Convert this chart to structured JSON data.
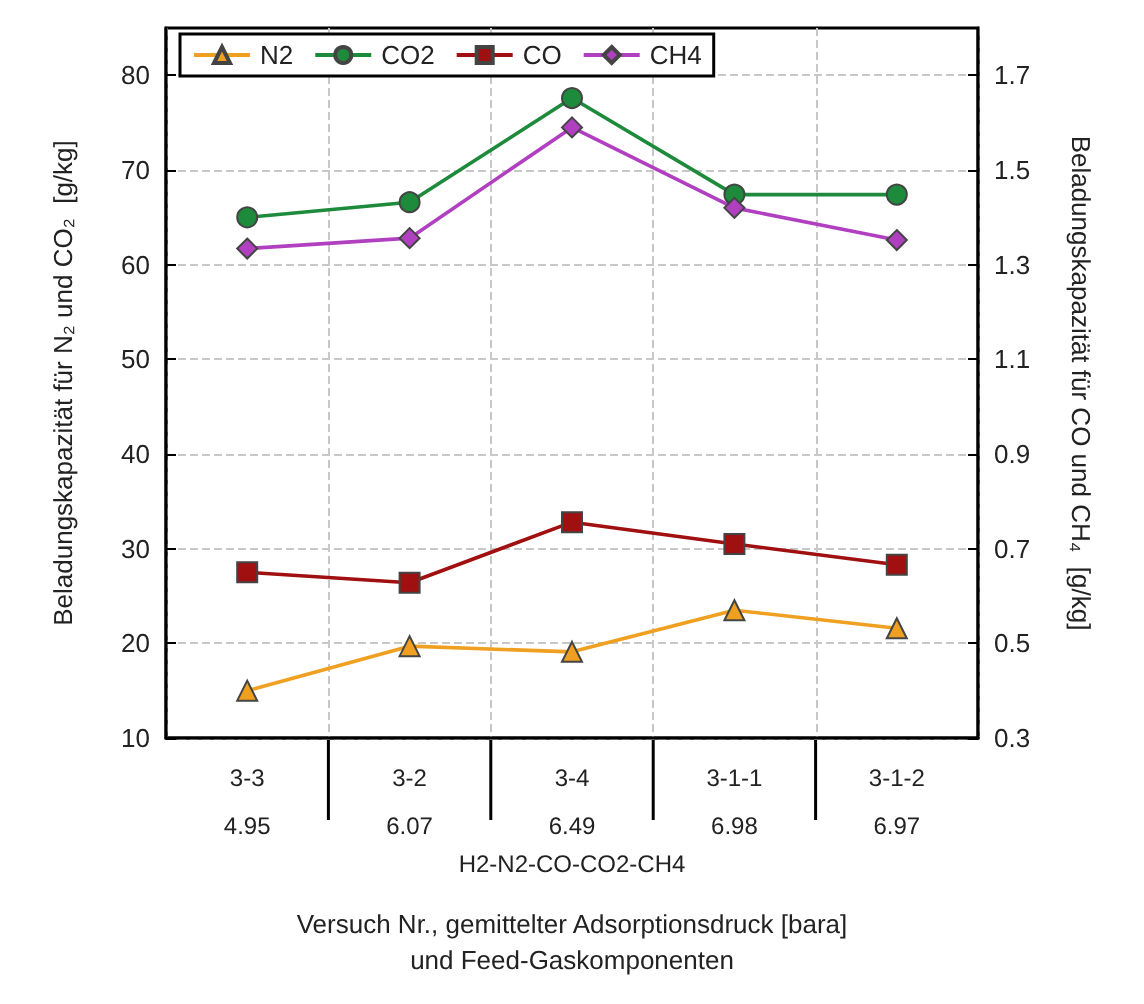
{
  "chart_data": {
    "type": "line",
    "xlabel": "Versuch Nr., gemittelter Adsorptionsdruck [bara]\nund Feed-Gaskomponenten",
    "ylabel": "Beladungskapazität für N₂ und CO₂  [g/kg]",
    "y2label": "Beladungskapazität für CO und CH₄  [g/kg]",
    "categories": [
      "3-3\n4.95",
      "3-2\n6.07",
      "3-4\n6.49",
      "3-1-1\n6.98",
      "3-1-2\n6.97"
    ],
    "annotations": [
      "H2-N2-CO-CO2-CH4"
    ],
    "series": [
      {
        "name": "N2",
        "color": "#f0a020",
        "marker": "triangle",
        "values": [
          15,
          19.7,
          19.1,
          23.5,
          21.6
        ]
      },
      {
        "name": "CO2",
        "color": "#1e8a3c",
        "marker": "circle",
        "values": [
          65,
          66.6,
          77.6,
          67.4,
          67.4
        ]
      },
      {
        "name": "CO",
        "color": "#a01010",
        "marker": "square",
        "axis": "y2",
        "values": [
          0.65,
          0.628,
          0.756,
          0.71,
          0.666
        ]
      },
      {
        "name": "CH4",
        "color": "#b040c0",
        "marker": "diamond",
        "axis": "y2",
        "values": [
          1.334,
          1.356,
          1.59,
          1.42,
          1.352
        ]
      }
    ],
    "ylim": [
      10,
      85
    ],
    "yticks": [
      10,
      20,
      30,
      40,
      50,
      60,
      70,
      80
    ],
    "y2lim": [
      0.3,
      1.8
    ],
    "y2ticks": [
      0.3,
      0.5,
      0.7,
      0.9,
      1.1,
      1.3,
      1.5,
      1.7
    ],
    "grid": true,
    "legend": "top left",
    "line_style": "solid"
  }
}
